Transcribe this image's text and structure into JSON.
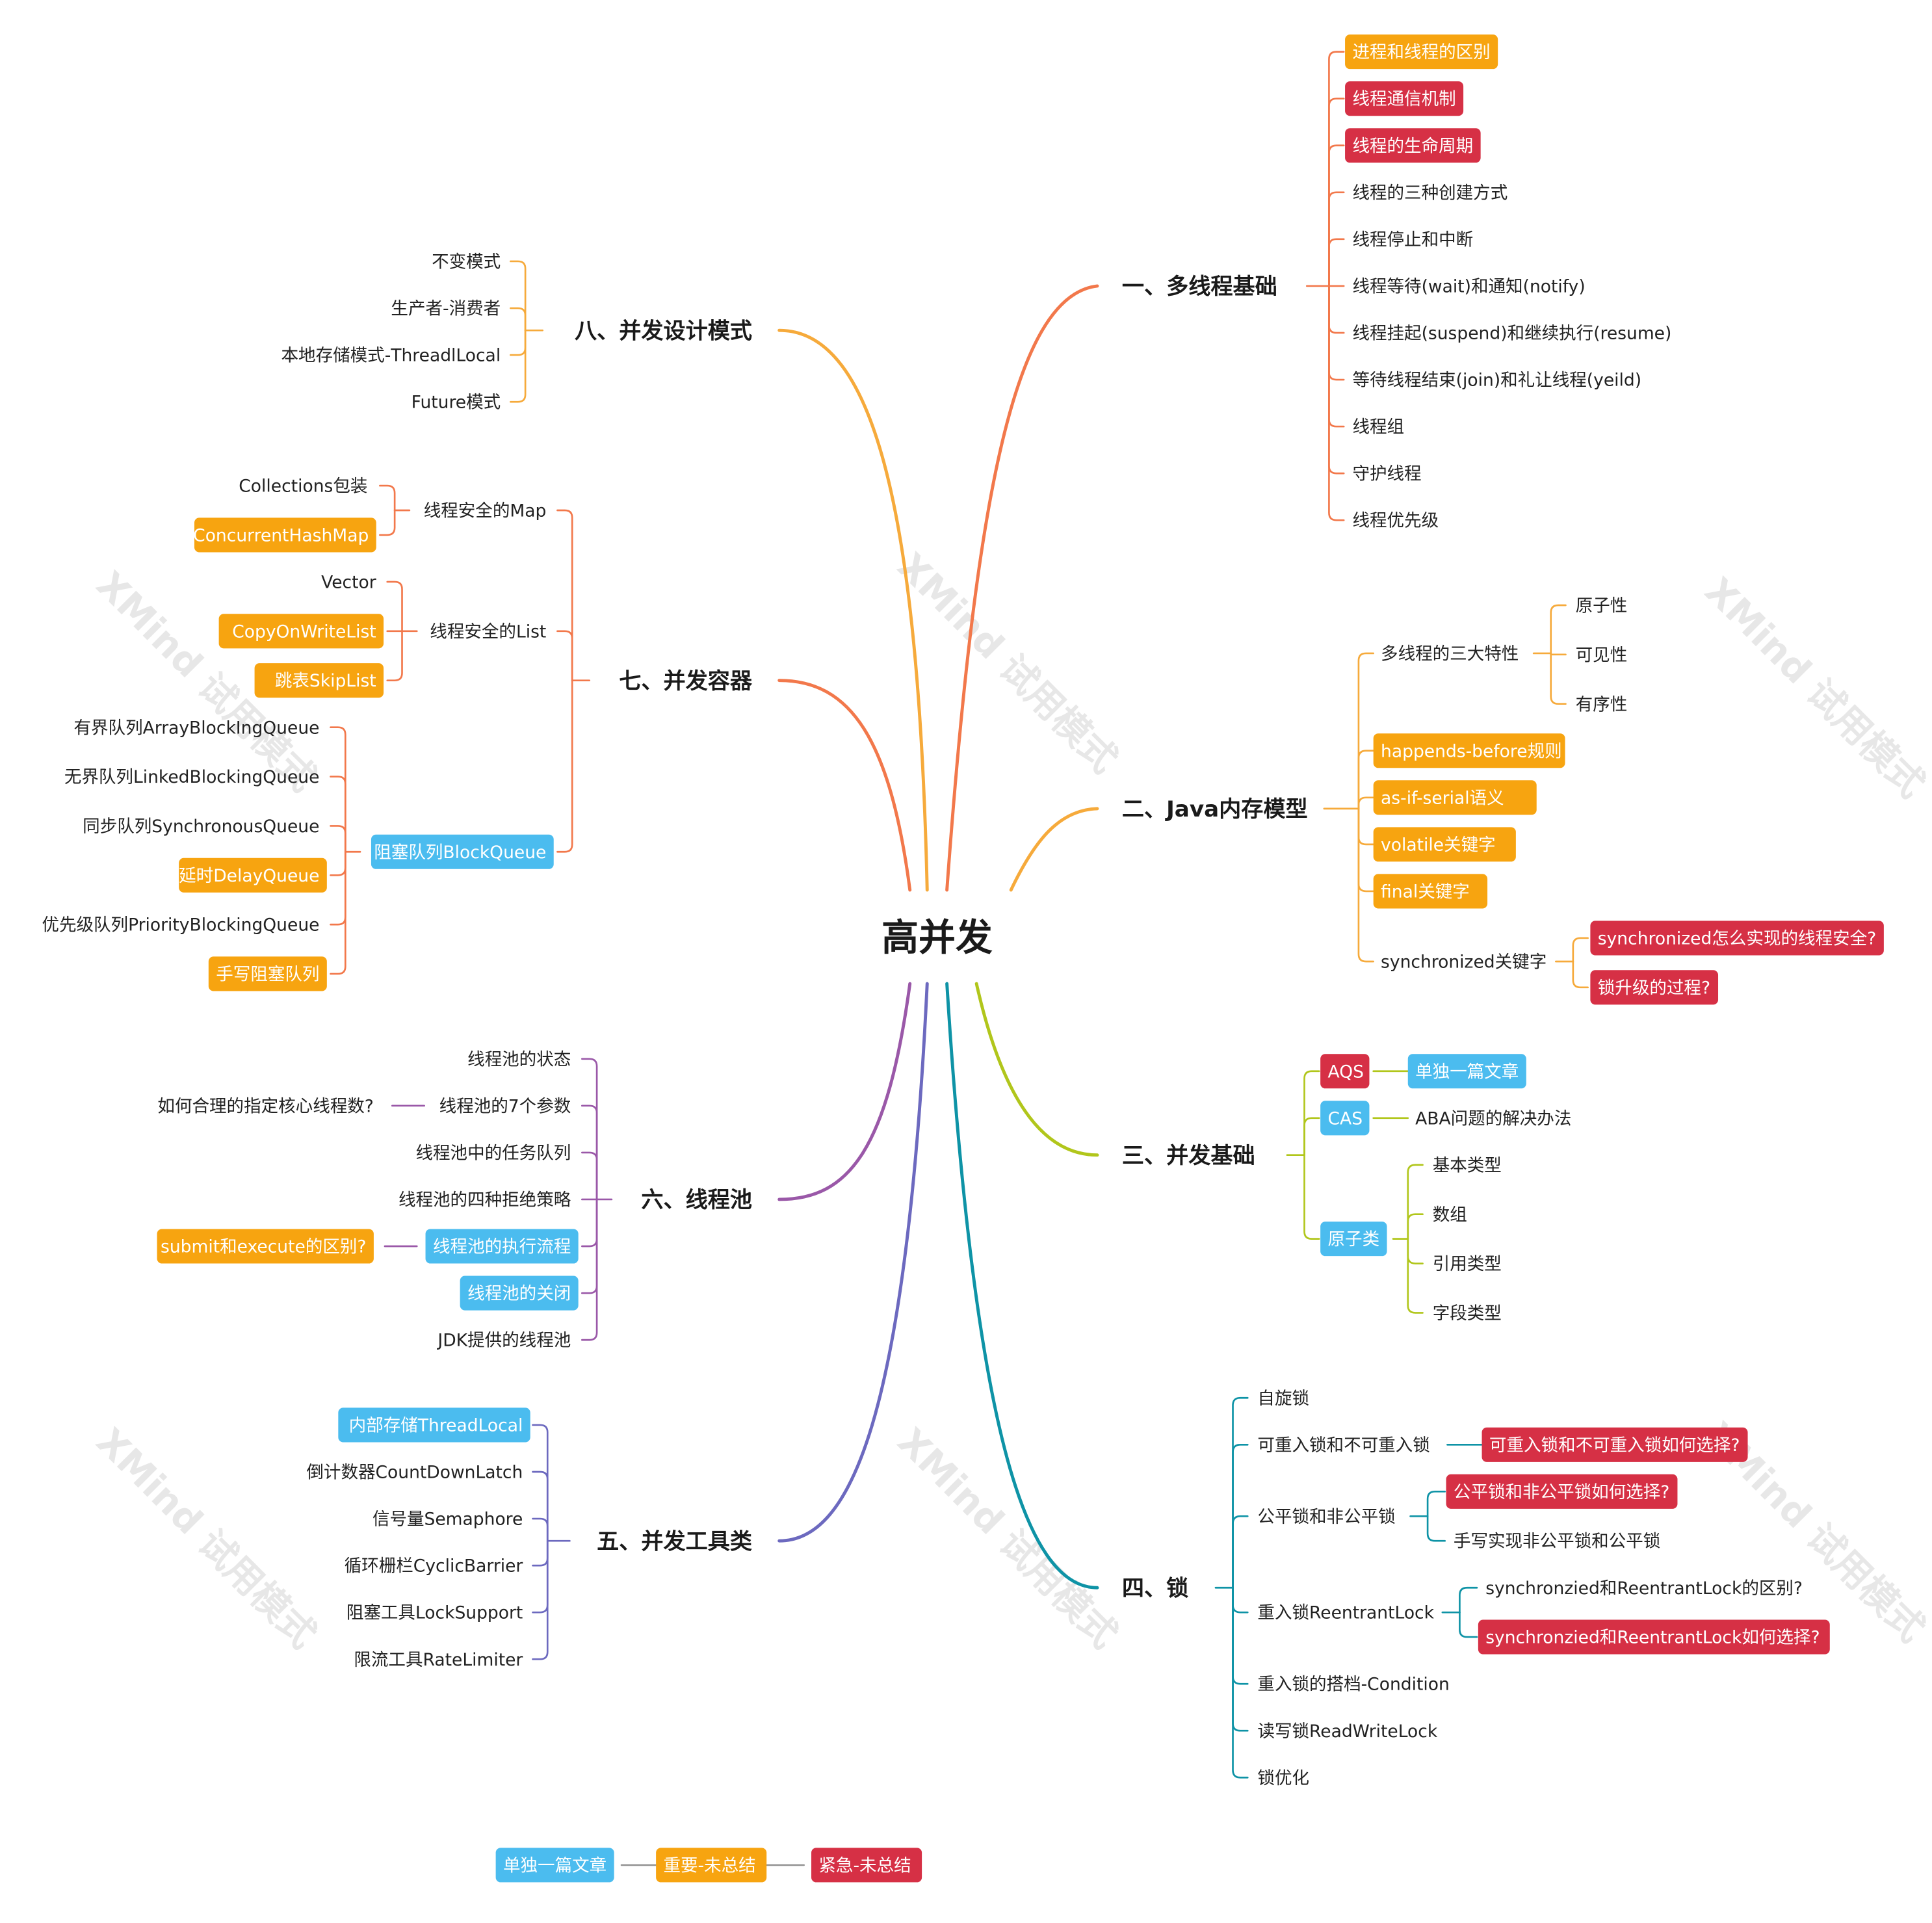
{
  "colors": {
    "orange": "#F7A410",
    "red": "#D63045",
    "blue": "#4BBCEF",
    "line_b1": "#F2784B",
    "line_b2": "#F6AA3B",
    "line_b3": "#B1C61B",
    "line_b4": "#0E93A6",
    "line_b5": "#6C69BF",
    "line_b6": "#9A58A8",
    "line_b7": "#F2784B",
    "line_b8": "#F6AA3B"
  },
  "watermark": "XMind 试用模式",
  "central": "高并发",
  "branches": {
    "b1": {
      "title": "一、多线程基础",
      "items": [
        "进程和线程的区别",
        "线程通信机制",
        "线程的生命周期",
        "线程的三种创建方式",
        "线程停止和中断",
        "线程等待(wait)和通知(notify)",
        "线程挂起(suspend)和继续执行(resume)",
        "等待线程结束(join)和礼让线程(yeild)",
        "线程组",
        "守护线程",
        "线程优先级"
      ]
    },
    "b2": {
      "title": "二、Java内存模型",
      "items": [
        "多线程的三大特性",
        "happends-before规则",
        "as-if-serial语义",
        "volatile关键字",
        "final关键字",
        "synchronized关键字"
      ],
      "sub0": [
        "原子性",
        "可见性",
        "有序性"
      ],
      "sub5": [
        "synchronized怎么实现的线程安全?",
        "锁升级的过程?"
      ]
    },
    "b3": {
      "title": "三、并发基础",
      "items": [
        "AQS",
        "CAS",
        "原子类"
      ],
      "aqs": "单独一篇文章",
      "cas": "ABA问题的解决办法",
      "atomic": [
        "基本类型",
        "数组",
        "引用类型",
        "字段类型"
      ]
    },
    "b4": {
      "title": "四、锁",
      "items": [
        "自旋锁",
        "可重入锁和不可重入锁",
        "公平锁和非公平锁",
        "重入锁ReentrantLock",
        "重入锁的搭档-Condition",
        "读写锁ReadWriteLock",
        "锁优化"
      ],
      "sub1": [
        "可重入锁和不可重入锁如何选择?"
      ],
      "sub2": [
        "公平锁和非公平锁如何选择?",
        "手写实现非公平锁和公平锁"
      ],
      "sub3": [
        "synchronzied和ReentrantLock的区别?",
        "synchronzied和ReentrantLock如何选择?"
      ]
    },
    "b5": {
      "title": "五、并发工具类",
      "items": [
        "内部存储ThreadLocal",
        "倒计数器CountDownLatch",
        "信号量Semaphore",
        "循环栅栏CyclicBarrier",
        "阻塞工具LockSupport",
        "限流工具RateLimiter"
      ]
    },
    "b6": {
      "title": "六、线程池",
      "items": [
        "线程池的状态",
        "线程池的7个参数",
        "线程池中的任务队列",
        "线程池的四种拒绝策略",
        "线程池的执行流程",
        "线程池的关闭",
        "JDK提供的线程池"
      ],
      "sub1": "如何合理的指定核心线程数?",
      "sub4": "submit和execute的区别?"
    },
    "b7": {
      "title": "七、并发容器",
      "items": [
        "线程安全的Map",
        "线程安全的List",
        "阻塞队列BlockQueue"
      ],
      "map": [
        "Collections包装",
        "ConcurrentHashMap"
      ],
      "list": [
        "Vector",
        "CopyOnWriteList",
        "跳表SkipList"
      ],
      "queue": [
        "有界队列ArrayBlockIngQueue",
        "无界队列LinkedBlockingQueue",
        "同步队列SynchronousQueue",
        "延时DelayQueue",
        "优先级队列PriorityBlockingQueue",
        "手写阻塞队列"
      ]
    },
    "b8": {
      "title": "八、并发设计模式",
      "items": [
        "不变模式",
        "生产者-消费者",
        "本地存储模式-ThreadlLocal",
        "Future模式"
      ]
    }
  },
  "legend": [
    "单独一篇文章",
    "重要-未总结",
    "紧急-未总结"
  ]
}
